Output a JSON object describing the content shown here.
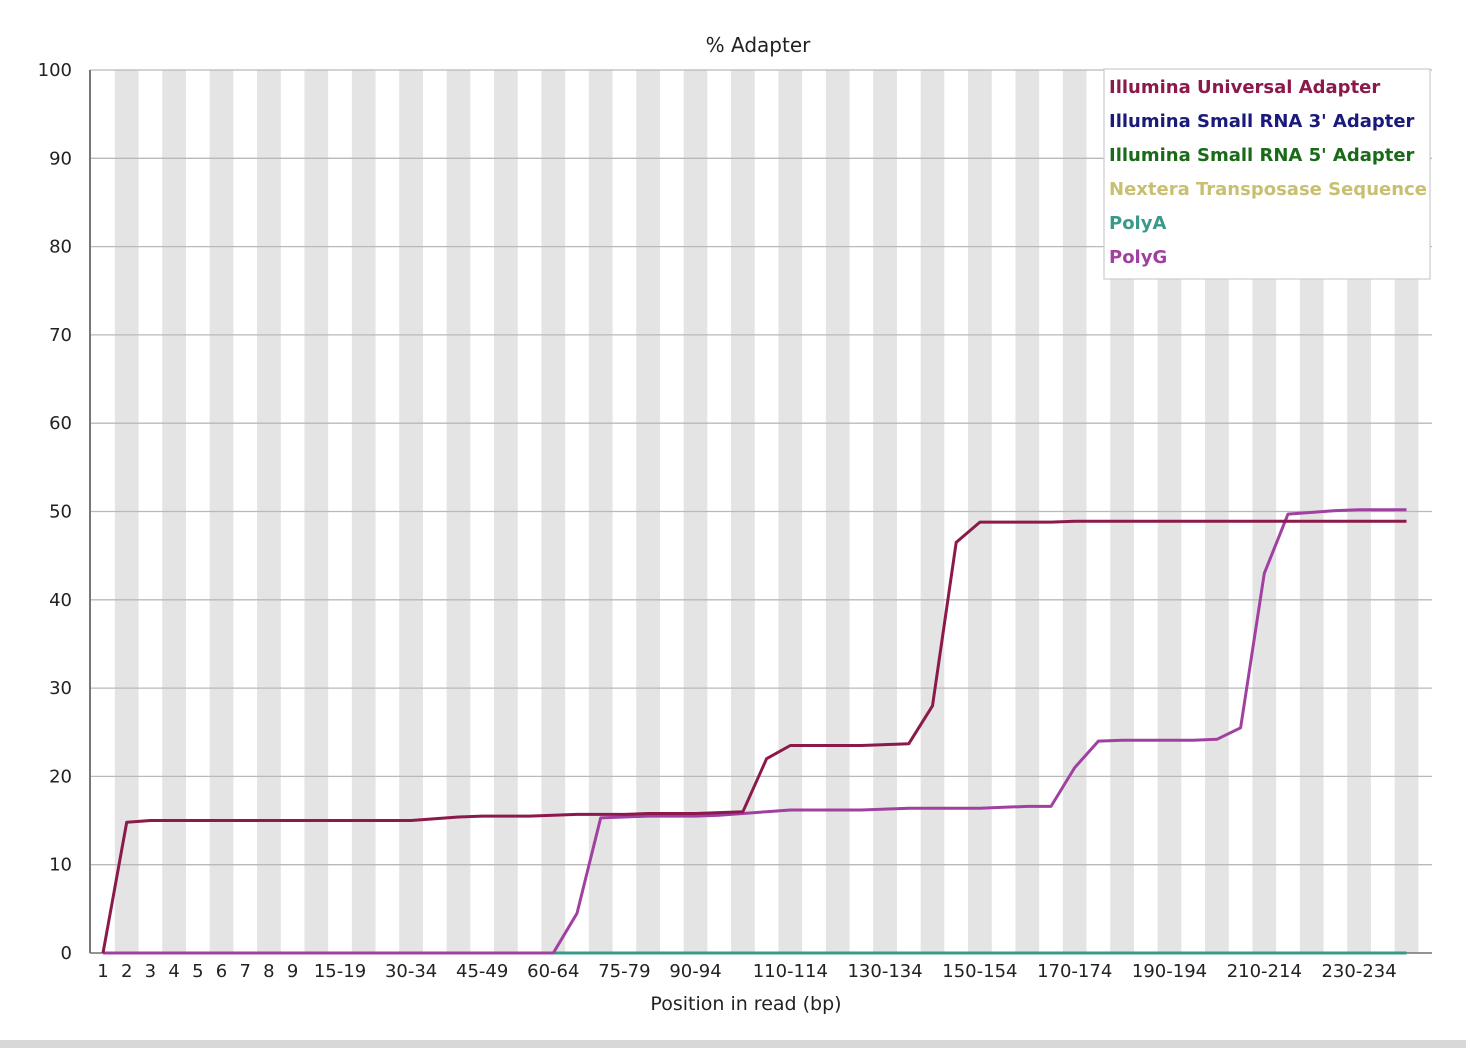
{
  "chart_data": {
    "type": "line",
    "title": "% Adapter",
    "xlabel": "Position in read (bp)",
    "ylabel": "",
    "ylim": [
      0,
      100
    ],
    "y_ticks": [
      0,
      10,
      20,
      30,
      40,
      50,
      60,
      70,
      80,
      90,
      100
    ],
    "grid": true,
    "legend_position": "top-right",
    "categories": [
      "1",
      "2",
      "3",
      "4",
      "5",
      "6",
      "7",
      "8",
      "9",
      "10-14",
      "15-19",
      "20-24",
      "25-29",
      "30-34",
      "35-39",
      "40-44",
      "45-49",
      "50-54",
      "55-59",
      "60-64",
      "65-69",
      "70-74",
      "75-79",
      "80-84",
      "85-89",
      "90-94",
      "95-99",
      "100-104",
      "105-109",
      "110-114",
      "115-119",
      "120-124",
      "125-129",
      "130-134",
      "135-139",
      "140-144",
      "145-149",
      "150-154",
      "155-159",
      "160-164",
      "165-169",
      "170-174",
      "175-179",
      "180-184",
      "185-189",
      "190-194",
      "195-199",
      "200-204",
      "205-209",
      "210-214",
      "215-219",
      "220-224",
      "225-229",
      "230-234",
      "235-239",
      "240-241"
    ],
    "x_tick_labels": [
      "1",
      "2",
      "3",
      "4",
      "5",
      "6",
      "7",
      "8",
      "9",
      "15-19",
      "30-34",
      "45-49",
      "60-64",
      "75-79",
      "90-94",
      "110-114",
      "130-134",
      "150-154",
      "170-174",
      "190-194",
      "210-214",
      "230-234"
    ],
    "series": [
      {
        "name": "Illumina Universal Adapter",
        "color": "#8b1a4a",
        "values": [
          0,
          14.8,
          15,
          15,
          15,
          15,
          15,
          15,
          15,
          15,
          15,
          15,
          15,
          15,
          15.2,
          15.4,
          15.5,
          15.5,
          15.5,
          15.6,
          15.7,
          15.7,
          15.7,
          15.8,
          15.8,
          15.8,
          15.9,
          16,
          22,
          23.5,
          23.5,
          23.5,
          23.5,
          23.6,
          23.7,
          28,
          46.5,
          48.8,
          48.8,
          48.8,
          48.8,
          48.9,
          48.9,
          48.9,
          48.9,
          48.9,
          48.9,
          48.9,
          48.9,
          48.9,
          48.9,
          48.9,
          48.9,
          48.9,
          48.9,
          48.9
        ]
      },
      {
        "name": "Illumina Small RNA 3' Adapter",
        "color": "#1a1a7a",
        "values": [
          0,
          0,
          0,
          0,
          0,
          0,
          0,
          0,
          0,
          0,
          0,
          0,
          0,
          0,
          0,
          0,
          0,
          0,
          0,
          0,
          0,
          0,
          0,
          0,
          0,
          0,
          0,
          0,
          0,
          0,
          0,
          0,
          0,
          0,
          0,
          0,
          0,
          0,
          0,
          0,
          0,
          0,
          0,
          0,
          0,
          0,
          0,
          0,
          0,
          0,
          0,
          0,
          0,
          0,
          0,
          0
        ]
      },
      {
        "name": "Illumina Small RNA 5' Adapter",
        "color": "#1a6a1a",
        "values": [
          0,
          0,
          0,
          0,
          0,
          0,
          0,
          0,
          0,
          0,
          0,
          0,
          0,
          0,
          0,
          0,
          0,
          0,
          0,
          0,
          0,
          0,
          0,
          0,
          0,
          0,
          0,
          0,
          0,
          0,
          0,
          0,
          0,
          0,
          0,
          0,
          0,
          0,
          0,
          0,
          0,
          0,
          0,
          0,
          0,
          0,
          0,
          0,
          0,
          0,
          0,
          0,
          0,
          0,
          0,
          0
        ]
      },
      {
        "name": "Nextera Transposase Sequence",
        "color": "#c8c070",
        "values": [
          0,
          0,
          0,
          0,
          0,
          0,
          0,
          0,
          0,
          0,
          0,
          0,
          0,
          0,
          0,
          0,
          0,
          0,
          0,
          0,
          0,
          0,
          0,
          0,
          0,
          0,
          0,
          0,
          0,
          0,
          0,
          0,
          0,
          0,
          0,
          0,
          0,
          0,
          0,
          0,
          0,
          0,
          0,
          0,
          0,
          0,
          0,
          0,
          0,
          0,
          0,
          0,
          0,
          0,
          0,
          0
        ]
      },
      {
        "name": "PolyA",
        "color": "#3a9a8a",
        "values": [
          0,
          0,
          0,
          0,
          0,
          0,
          0,
          0,
          0,
          0,
          0,
          0,
          0,
          0,
          0,
          0,
          0,
          0,
          0,
          0,
          0,
          0,
          0,
          0,
          0,
          0,
          0,
          0,
          0,
          0,
          0,
          0,
          0,
          0,
          0,
          0,
          0,
          0,
          0,
          0,
          0,
          0,
          0,
          0,
          0,
          0,
          0,
          0,
          0,
          0,
          0,
          0,
          0,
          0,
          0,
          0
        ]
      },
      {
        "name": "PolyG",
        "color": "#a040a0",
        "values": [
          0,
          0,
          0,
          0,
          0,
          0,
          0,
          0,
          0,
          0,
          0,
          0,
          0,
          0,
          0,
          0,
          0,
          0,
          0,
          0,
          4.5,
          15.3,
          15.4,
          15.5,
          15.5,
          15.5,
          15.6,
          15.8,
          16,
          16.2,
          16.2,
          16.2,
          16.2,
          16.3,
          16.4,
          16.4,
          16.4,
          16.4,
          16.5,
          16.6,
          16.6,
          21,
          24,
          24.1,
          24.1,
          24.1,
          24.1,
          24.2,
          25.5,
          43,
          49.7,
          49.9,
          50.1,
          50.2,
          50.2,
          50.2
        ]
      }
    ]
  }
}
